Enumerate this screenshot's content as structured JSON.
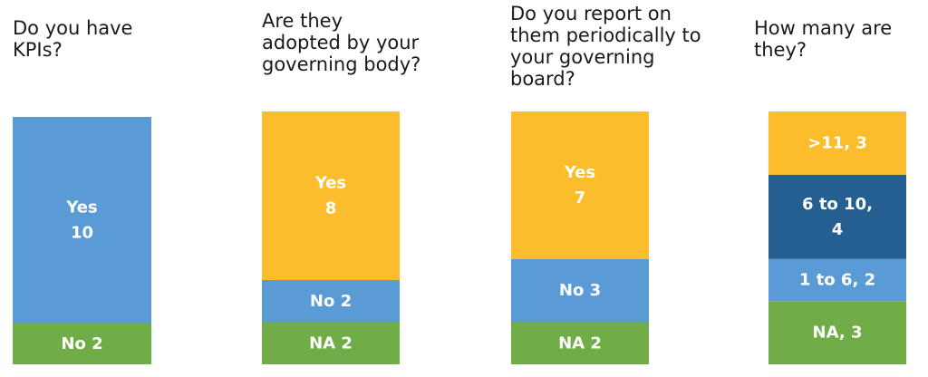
{
  "chart_data": {
    "type": "bar",
    "stacked": true,
    "normalized": true,
    "legend": "none",
    "grid": false,
    "colors": {
      "Yes": "#5b9bd5",
      "No": "#5b9bd5",
      "NA": "#70ad47",
      ">11": "#fbbd2b",
      "6 to 10": "#255e91",
      "1 to 6": "#5b9bd5"
    },
    "charts": [
      {
        "title": "Do you have\nKPIs?",
        "segments": [
          {
            "category": "No",
            "value": 2,
            "label": [
              "No 2"
            ],
            "color": "#70ad47"
          },
          {
            "category": "Yes",
            "value": 10,
            "label": [
              "Yes",
              "10"
            ],
            "color": "#5b9bd5"
          }
        ]
      },
      {
        "title": "Are they\nadopted by your\ngoverning body?",
        "segments": [
          {
            "category": "NA",
            "value": 2,
            "label": [
              "NA 2"
            ],
            "color": "#70ad47"
          },
          {
            "category": "No",
            "value": 2,
            "label": [
              "No 2"
            ],
            "color": "#5b9bd5"
          },
          {
            "category": "Yes",
            "value": 8,
            "label": [
              "Yes",
              "8"
            ],
            "color": "#fbbd2b"
          }
        ]
      },
      {
        "title": "Do you report on\nthem periodically to\nyour governing\nboard?",
        "segments": [
          {
            "category": "NA",
            "value": 2,
            "label": [
              "NA 2"
            ],
            "color": "#70ad47"
          },
          {
            "category": "No",
            "value": 3,
            "label": [
              "No 3"
            ],
            "color": "#5b9bd5"
          },
          {
            "category": "Yes",
            "value": 7,
            "label": [
              "Yes",
              "7"
            ],
            "color": "#fbbd2b"
          }
        ]
      },
      {
        "title": "How many are\nthey?",
        "segments": [
          {
            "category": "NA",
            "value": 3,
            "label": [
              "NA, 3"
            ],
            "color": "#70ad47"
          },
          {
            "category": "1 to 6",
            "value": 2,
            "label": [
              "1 to 6, 2"
            ],
            "color": "#5b9bd5"
          },
          {
            "category": "6 to 10",
            "value": 4,
            "label": [
              "6 to 10,",
              "4"
            ],
            "color": "#255e91"
          },
          {
            "category": ">11",
            "value": 3,
            "label": [
              ">11, 3"
            ],
            "color": "#fbbd2b"
          }
        ]
      }
    ]
  }
}
